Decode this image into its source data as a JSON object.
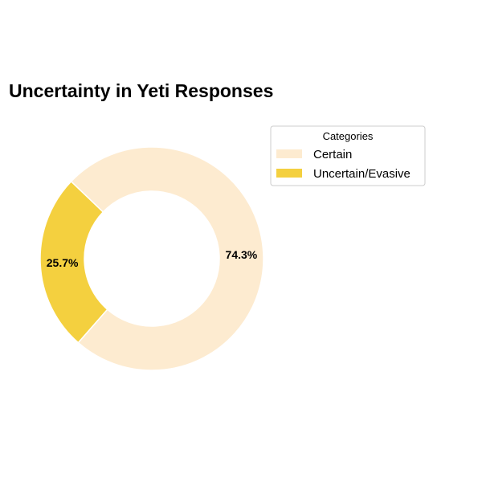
{
  "chart_data": {
    "type": "pie",
    "title": "Uncertainty in Yeti Responses",
    "categories": [
      "Certain",
      "Uncertain/Evasive"
    ],
    "values": [
      74.3,
      25.7
    ],
    "labels": [
      "74.3%",
      "25.7%"
    ],
    "colors": [
      "#fdebd0",
      "#f4d03f"
    ],
    "donut": true,
    "legend": {
      "title": "Categories",
      "placement": "upper-right"
    }
  }
}
